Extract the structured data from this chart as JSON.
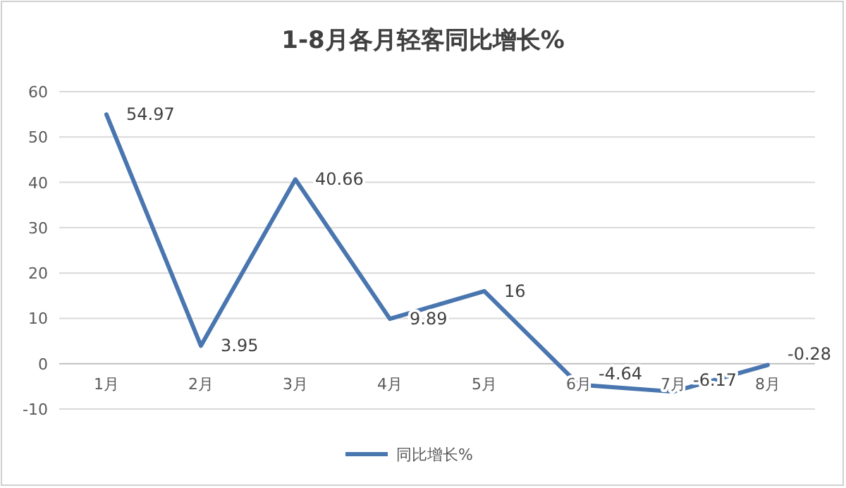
{
  "chart_data": {
    "type": "line",
    "title": "1-8月各月轻客同比增长%",
    "categories": [
      "1月",
      "2月",
      "3月",
      "4月",
      "5月",
      "6月",
      "7月",
      "8月"
    ],
    "series": [
      {
        "name": "同比增长%",
        "color": "#4a76b0",
        "values": [
          54.97,
          3.95,
          40.66,
          9.89,
          16,
          -4.64,
          -6.17,
          -0.28
        ]
      }
    ],
    "ylim": [
      -10,
      60
    ],
    "yticks": [
      -10,
      0,
      10,
      20,
      30,
      40,
      50,
      60
    ],
    "grid": "y",
    "legend": "bottom",
    "data_labels": true,
    "marker": "none",
    "line_style": "solid"
  }
}
